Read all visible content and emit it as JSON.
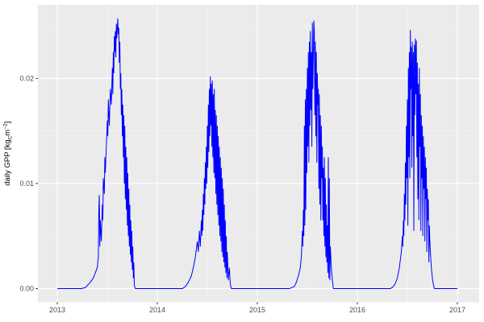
{
  "chart_data": {
    "type": "line",
    "title": "",
    "xlabel": "",
    "ylabel_parts": {
      "prefix": "daily GPP [kg",
      "sub": "C",
      "mid": "m",
      "sup": "−2",
      "suffix": "]"
    },
    "x_tick_labels": [
      "2013",
      "2014",
      "2015",
      "2016",
      "2017"
    ],
    "x_ticks": [
      2013,
      2014,
      2015,
      2016,
      2017
    ],
    "x_minor_ticks": [
      2013.5,
      2014.5,
      2015.5,
      2016.5
    ],
    "y_tick_labels": [
      "0.00",
      "0.01",
      "0.02"
    ],
    "y_ticks": [
      0.0,
      0.01,
      0.02
    ],
    "y_minor_ticks": [
      0.005,
      0.015,
      0.025
    ],
    "xlim": [
      2012.806,
      2017.218
    ],
    "ylim": [
      -0.0013,
      0.027
    ],
    "grid": true,
    "legend_position": "none",
    "colors": {
      "line": "#0000FF",
      "panel_background": "#EBEBEB",
      "grid_major": "#FFFFFF",
      "grid_minor": "#F7F7F7",
      "tick_label": "#4D4D4D",
      "axis_title": "#000000",
      "tick_mark": "#333333",
      "outer_background": "#FFFFFF"
    },
    "series": [
      {
        "name": "daily GPP",
        "points": [
          [
            2013.0,
            0
          ],
          [
            2013.06,
            0
          ],
          [
            2013.12,
            0
          ],
          [
            2013.18,
            0
          ],
          [
            2013.24,
            0
          ],
          [
            2013.28,
            0.0001
          ],
          [
            2013.3,
            0.0003
          ],
          [
            2013.33,
            0.0006
          ],
          [
            2013.36,
            0.001
          ],
          [
            2013.38,
            0.0015
          ],
          [
            2013.4,
            0.002
          ],
          [
            2013.41,
            0.003
          ],
          [
            2013.415,
            0.0075
          ],
          [
            2013.42,
            0.0089
          ],
          [
            2013.425,
            0.004
          ],
          [
            2013.43,
            0.0065
          ],
          [
            2013.44,
            0.0045
          ],
          [
            2013.45,
            0.008
          ],
          [
            2013.455,
            0.0065
          ],
          [
            2013.46,
            0.0105
          ],
          [
            2013.47,
            0.009
          ],
          [
            2013.475,
            0.0125
          ],
          [
            2013.48,
            0.011
          ],
          [
            2013.49,
            0.0135
          ],
          [
            2013.5,
            0.016
          ],
          [
            2013.505,
            0.0145
          ],
          [
            2013.51,
            0.018
          ],
          [
            2013.52,
            0.0155
          ],
          [
            2013.53,
            0.019
          ],
          [
            2013.54,
            0.0175
          ],
          [
            2013.55,
            0.021
          ],
          [
            2013.555,
            0.0185
          ],
          [
            2013.56,
            0.0225
          ],
          [
            2013.565,
            0.0205
          ],
          [
            2013.57,
            0.024
          ],
          [
            2013.575,
            0.0225
          ],
          [
            2013.58,
            0.0245
          ],
          [
            2013.585,
            0.022
          ],
          [
            2013.59,
            0.0252
          ],
          [
            2013.595,
            0.0238
          ],
          [
            2013.605,
            0.0257
          ],
          [
            2013.61,
            0.0242
          ],
          [
            2013.615,
            0.0248
          ],
          [
            2013.62,
            0.0215
          ],
          [
            2013.625,
            0.0235
          ],
          [
            2013.63,
            0.019
          ],
          [
            2013.635,
            0.0205
          ],
          [
            2013.64,
            0.0165
          ],
          [
            2013.645,
            0.019
          ],
          [
            2013.65,
            0.0145
          ],
          [
            2013.655,
            0.0175
          ],
          [
            2013.66,
            0.0125
          ],
          [
            2013.665,
            0.0165
          ],
          [
            2013.67,
            0.01
          ],
          [
            2013.675,
            0.0155
          ],
          [
            2013.68,
            0.0085
          ],
          [
            2013.685,
            0.0135
          ],
          [
            2013.69,
            0.0075
          ],
          [
            2013.695,
            0.0125
          ],
          [
            2013.7,
            0.006
          ],
          [
            2013.705,
            0.011
          ],
          [
            2013.71,
            0.005
          ],
          [
            2013.715,
            0.0095
          ],
          [
            2013.72,
            0.004
          ],
          [
            2013.725,
            0.008
          ],
          [
            2013.73,
            0.0032
          ],
          [
            2013.735,
            0.0065
          ],
          [
            2013.74,
            0.0025
          ],
          [
            2013.745,
            0.0055
          ],
          [
            2013.75,
            0.0018
          ],
          [
            2013.755,
            0.004
          ],
          [
            2013.76,
            0.001
          ],
          [
            2013.765,
            0.0025
          ],
          [
            2013.77,
            0.0003
          ],
          [
            2013.78,
            0
          ],
          [
            2013.85,
            0
          ],
          [
            2013.95,
            0
          ],
          [
            2014.05,
            0
          ],
          [
            2014.15,
            0
          ],
          [
            2014.25,
            0
          ],
          [
            2014.28,
            0.0002
          ],
          [
            2014.31,
            0.0006
          ],
          [
            2014.34,
            0.0012
          ],
          [
            2014.36,
            0.002
          ],
          [
            2014.38,
            0.003
          ],
          [
            2014.4,
            0.0045
          ],
          [
            2014.41,
            0.0035
          ],
          [
            2014.42,
            0.0055
          ],
          [
            2014.43,
            0.004
          ],
          [
            2014.44,
            0.0065
          ],
          [
            2014.445,
            0.005
          ],
          [
            2014.45,
            0.0075
          ],
          [
            2014.455,
            0.0055
          ],
          [
            2014.46,
            0.009
          ],
          [
            2014.465,
            0.007
          ],
          [
            2014.47,
            0.0105
          ],
          [
            2014.475,
            0.008
          ],
          [
            2014.48,
            0.012
          ],
          [
            2014.485,
            0.0095
          ],
          [
            2014.49,
            0.0135
          ],
          [
            2014.495,
            0.01
          ],
          [
            2014.5,
            0.0155
          ],
          [
            2014.505,
            0.0115
          ],
          [
            2014.51,
            0.0175
          ],
          [
            2014.515,
            0.013
          ],
          [
            2014.52,
            0.019
          ],
          [
            2014.525,
            0.0145
          ],
          [
            2014.53,
            0.0202
          ],
          [
            2014.535,
            0.0155
          ],
          [
            2014.54,
            0.0195
          ],
          [
            2014.545,
            0.0135
          ],
          [
            2014.55,
            0.0198
          ],
          [
            2014.555,
            0.0125
          ],
          [
            2014.56,
            0.0185
          ],
          [
            2014.565,
            0.011
          ],
          [
            2014.57,
            0.019
          ],
          [
            2014.575,
            0.0105
          ],
          [
            2014.58,
            0.017
          ],
          [
            2014.585,
            0.009
          ],
          [
            2014.59,
            0.0165
          ],
          [
            2014.595,
            0.008
          ],
          [
            2014.6,
            0.0155
          ],
          [
            2014.605,
            0.007
          ],
          [
            2014.61,
            0.0145
          ],
          [
            2014.615,
            0.006
          ],
          [
            2014.62,
            0.0135
          ],
          [
            2014.625,
            0.005
          ],
          [
            2014.63,
            0.0125
          ],
          [
            2014.635,
            0.0045
          ],
          [
            2014.64,
            0.0115
          ],
          [
            2014.645,
            0.0035
          ],
          [
            2014.65,
            0.0105
          ],
          [
            2014.655,
            0.003
          ],
          [
            2014.66,
            0.0095
          ],
          [
            2014.665,
            0.0025
          ],
          [
            2014.67,
            0.008
          ],
          [
            2014.675,
            0.002
          ],
          [
            2014.68,
            0.0065
          ],
          [
            2014.685,
            0.0015
          ],
          [
            2014.69,
            0.005
          ],
          [
            2014.695,
            0.001
          ],
          [
            2014.7,
            0.0035
          ],
          [
            2014.71,
            0.0008
          ],
          [
            2014.72,
            0.002
          ],
          [
            2014.73,
            0.0004
          ],
          [
            2014.74,
            0
          ],
          [
            2014.82,
            0
          ],
          [
            2014.92,
            0
          ],
          [
            2015.02,
            0
          ],
          [
            2015.12,
            0
          ],
          [
            2015.22,
            0
          ],
          [
            2015.32,
            0
          ],
          [
            2015.37,
            0.0002
          ],
          [
            2015.39,
            0.0006
          ],
          [
            2015.41,
            0.0012
          ],
          [
            2015.43,
            0.002
          ],
          [
            2015.44,
            0.003
          ],
          [
            2015.45,
            0.0055
          ],
          [
            2015.455,
            0.004
          ],
          [
            2015.46,
            0.0075
          ],
          [
            2015.465,
            0.005
          ],
          [
            2015.47,
            0.0155
          ],
          [
            2015.475,
            0.006
          ],
          [
            2015.48,
            0.018
          ],
          [
            2015.485,
            0.0075
          ],
          [
            2015.49,
            0.019
          ],
          [
            2015.495,
            0.011
          ],
          [
            2015.5,
            0.021
          ],
          [
            2015.505,
            0.0135
          ],
          [
            2015.51,
            0.0225
          ],
          [
            2015.515,
            0.012
          ],
          [
            2015.52,
            0.0235
          ],
          [
            2015.525,
            0.0155
          ],
          [
            2015.53,
            0.0245
          ],
          [
            2015.535,
            0.017
          ],
          [
            2015.54,
            0.0225
          ],
          [
            2015.545,
            0.0135
          ],
          [
            2015.55,
            0.0253
          ],
          [
            2015.555,
            0.019
          ],
          [
            2015.565,
            0.0255
          ],
          [
            2015.57,
            0.0245
          ],
          [
            2015.575,
            0.0165
          ],
          [
            2015.58,
            0.0235
          ],
          [
            2015.585,
            0.0145
          ],
          [
            2015.59,
            0.0225
          ],
          [
            2015.595,
            0.012
          ],
          [
            2015.6,
            0.0205
          ],
          [
            2015.605,
            0.0175
          ],
          [
            2015.61,
            0.019
          ],
          [
            2015.615,
            0.0095
          ],
          [
            2015.62,
            0.0185
          ],
          [
            2015.625,
            0.008
          ],
          [
            2015.63,
            0.0165
          ],
          [
            2015.635,
            0.0065
          ],
          [
            2015.64,
            0.0155
          ],
          [
            2015.645,
            0.0105
          ],
          [
            2015.65,
            0.0135
          ],
          [
            2015.655,
            0.0065
          ],
          [
            2015.66,
            0.0115
          ],
          [
            2015.665,
            0.005
          ],
          [
            2015.67,
            0.0125
          ],
          [
            2015.675,
            0.004
          ],
          [
            2015.68,
            0.0105
          ],
          [
            2015.685,
            0.003
          ],
          [
            2015.69,
            0.008
          ],
          [
            2015.695,
            0.0025
          ],
          [
            2015.7,
            0.006
          ],
          [
            2015.705,
            0.0015
          ],
          [
            2015.71,
            0.0125
          ],
          [
            2015.715,
            0.001
          ],
          [
            2015.72,
            0.0105
          ],
          [
            2015.725,
            0.0008
          ],
          [
            2015.73,
            0.004
          ],
          [
            2015.74,
            0.002
          ],
          [
            2015.75,
            0.0008
          ],
          [
            2015.76,
            0
          ],
          [
            2015.84,
            0
          ],
          [
            2015.94,
            0
          ],
          [
            2016.04,
            0
          ],
          [
            2016.14,
            0
          ],
          [
            2016.24,
            0
          ],
          [
            2016.33,
            0
          ],
          [
            2016.36,
            0.0002
          ],
          [
            2016.38,
            0.0005
          ],
          [
            2016.4,
            0.001
          ],
          [
            2016.42,
            0.002
          ],
          [
            2016.44,
            0.0035
          ],
          [
            2016.45,
            0.005
          ],
          [
            2016.455,
            0.004
          ],
          [
            2016.46,
            0.0065
          ],
          [
            2016.465,
            0.005
          ],
          [
            2016.47,
            0.009
          ],
          [
            2016.475,
            0.0065
          ],
          [
            2016.48,
            0.012
          ],
          [
            2016.485,
            0.008
          ],
          [
            2016.49,
            0.0155
          ],
          [
            2016.495,
            0.0105
          ],
          [
            2016.5,
            0.018
          ],
          [
            2016.505,
            0.006
          ],
          [
            2016.51,
            0.021
          ],
          [
            2016.515,
            0.0125
          ],
          [
            2016.52,
            0.0225
          ],
          [
            2016.525,
            0.0105
          ],
          [
            2016.53,
            0.0246
          ],
          [
            2016.535,
            0.019
          ],
          [
            2016.54,
            0.023
          ],
          [
            2016.545,
            0.0115
          ],
          [
            2016.55,
            0.0235
          ],
          [
            2016.555,
            0.0145
          ],
          [
            2016.56,
            0.0225
          ],
          [
            2016.565,
            0.0055
          ],
          [
            2016.57,
            0.0232
          ],
          [
            2016.575,
            0.0165
          ],
          [
            2016.58,
            0.0238
          ],
          [
            2016.585,
            0.0185
          ],
          [
            2016.59,
            0.0236
          ],
          [
            2016.595,
            0.0125
          ],
          [
            2016.6,
            0.0215
          ],
          [
            2016.605,
            0.0085
          ],
          [
            2016.61,
            0.0195
          ],
          [
            2016.615,
            0.0065
          ],
          [
            2016.62,
            0.021
          ],
          [
            2016.625,
            0.0135
          ],
          [
            2016.63,
            0.0185
          ],
          [
            2016.635,
            0.0055
          ],
          [
            2016.64,
            0.0165
          ],
          [
            2016.645,
            0.0105
          ],
          [
            2016.65,
            0.0155
          ],
          [
            2016.655,
            0.005
          ],
          [
            2016.66,
            0.0145
          ],
          [
            2016.665,
            0.0095
          ],
          [
            2016.67,
            0.0135
          ],
          [
            2016.675,
            0.0045
          ],
          [
            2016.68,
            0.0125
          ],
          [
            2016.685,
            0.0085
          ],
          [
            2016.69,
            0.0115
          ],
          [
            2016.695,
            0.0035
          ],
          [
            2016.7,
            0.0095
          ],
          [
            2016.705,
            0.0065
          ],
          [
            2016.71,
            0.0085
          ],
          [
            2016.715,
            0.0025
          ],
          [
            2016.72,
            0.006
          ],
          [
            2016.725,
            0.0045
          ],
          [
            2016.73,
            0.0035
          ],
          [
            2016.74,
            0.002
          ],
          [
            2016.75,
            0.001
          ],
          [
            2016.76,
            0.0004
          ],
          [
            2016.77,
            0
          ],
          [
            2016.84,
            0
          ],
          [
            2016.92,
            0
          ],
          [
            2017.0,
            0
          ]
        ]
      }
    ]
  }
}
